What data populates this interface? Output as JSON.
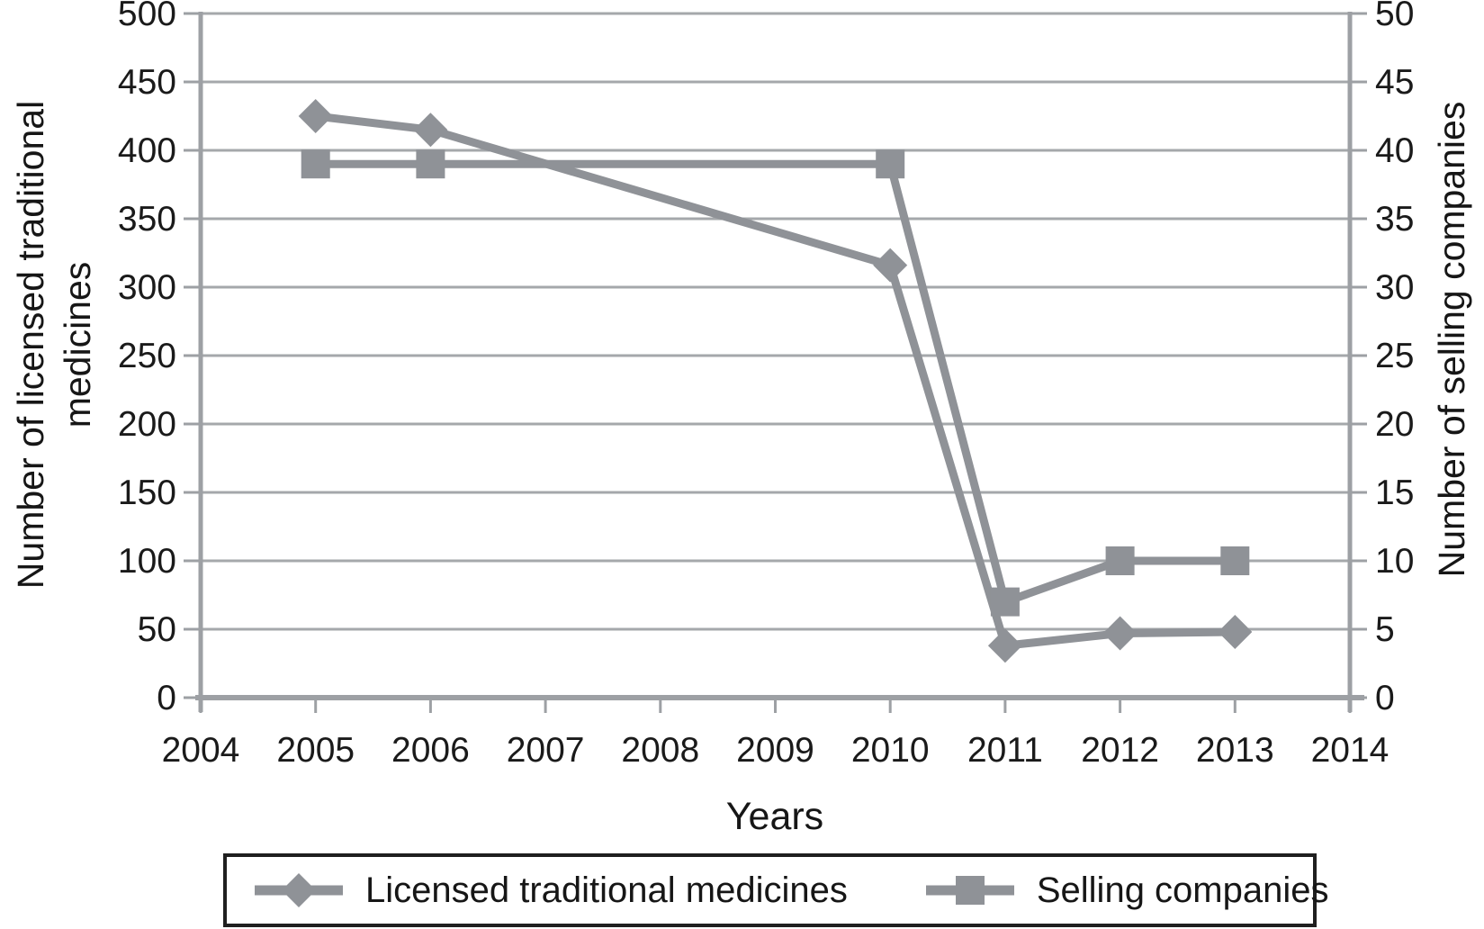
{
  "chart_data": {
    "type": "line",
    "title": "",
    "xlabel": "Years",
    "ylabel_left": "Number of licensed traditional medicines",
    "ylabel_left_lines": [
      "Number of licensed traditional",
      "medicines"
    ],
    "ylabel_right": "Number of selling companies",
    "x_ticks": [
      2004,
      2005,
      2006,
      2007,
      2008,
      2009,
      2010,
      2011,
      2012,
      2013,
      2014
    ],
    "left_axis": {
      "min": 0,
      "max": 500,
      "step": 50,
      "ticks": [
        0,
        50,
        100,
        150,
        200,
        250,
        300,
        350,
        400,
        450,
        500
      ]
    },
    "right_axis": {
      "min": 0,
      "max": 50,
      "step": 5,
      "ticks": [
        0,
        5,
        10,
        15,
        20,
        25,
        30,
        35,
        40,
        45,
        50
      ]
    },
    "grid": "horizontal",
    "legend_position": "bottom",
    "series": [
      {
        "name": "Licensed traditional medicines",
        "axis": "left",
        "marker": "diamond",
        "x": [
          2005,
          2006,
          2010,
          2011,
          2012,
          2013
        ],
        "y": [
          425,
          415,
          316,
          38,
          47,
          48
        ]
      },
      {
        "name": "Selling companies",
        "axis": "right",
        "marker": "square",
        "x": [
          2005,
          2006,
          2010,
          2011,
          2012,
          2013
        ],
        "y": [
          39,
          39,
          39,
          7,
          10,
          10
        ]
      }
    ],
    "colors": {
      "series": "#8f9297",
      "grid": "#a5a8ab",
      "axis": "#9da0a4",
      "text": "#1a1a1a",
      "legend_border": "#1f1f1f"
    }
  }
}
